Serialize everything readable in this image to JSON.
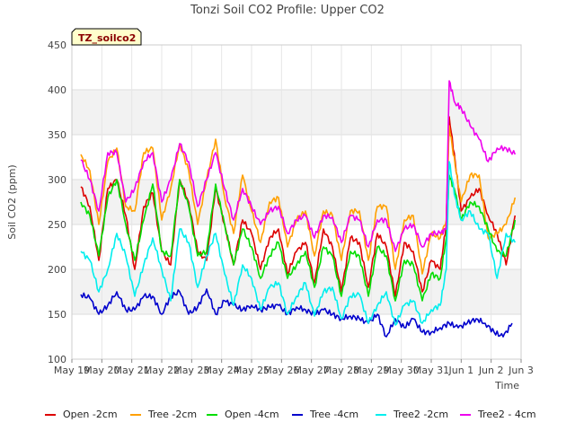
{
  "chart_data": {
    "type": "line",
    "title": "Tonzi Soil CO2 Profile: Upper CO2",
    "xlabel": "Time",
    "ylabel": "Soil CO2 (ppm)",
    "badge": "TZ_soilco2",
    "ylim": [
      100,
      450
    ],
    "yticks": [
      100,
      150,
      200,
      250,
      300,
      350,
      400,
      450
    ],
    "xlim": [
      0,
      15
    ],
    "xticks": [
      {
        "pos": 0,
        "label": "May 19"
      },
      {
        "pos": 1,
        "label": "May 20"
      },
      {
        "pos": 2,
        "label": "May 21"
      },
      {
        "pos": 3,
        "label": "May 22"
      },
      {
        "pos": 4,
        "label": "May 23"
      },
      {
        "pos": 5,
        "label": "May 24"
      },
      {
        "pos": 6,
        "label": "May 25"
      },
      {
        "pos": 7,
        "label": "May 26"
      },
      {
        "pos": 8,
        "label": "May 27"
      },
      {
        "pos": 9,
        "label": "May 28"
      },
      {
        "pos": 10,
        "label": "May 29"
      },
      {
        "pos": 11,
        "label": "May 30"
      },
      {
        "pos": 12,
        "label": "May 31"
      },
      {
        "pos": 13,
        "label": "Jun 1"
      },
      {
        "pos": 14,
        "label": "Jun 2"
      },
      {
        "pos": 15,
        "label": "Jun 3"
      }
    ],
    "grid": true,
    "legend_position": "bottom",
    "series": [
      {
        "name": "Open -2cm",
        "color": "#dd0000",
        "x": [
          0.3,
          0.6,
          0.9,
          1.2,
          1.5,
          1.8,
          2.1,
          2.4,
          2.7,
          3.0,
          3.3,
          3.6,
          3.9,
          4.2,
          4.5,
          4.8,
          5.1,
          5.4,
          5.7,
          6.0,
          6.3,
          6.6,
          6.9,
          7.2,
          7.5,
          7.8,
          8.1,
          8.4,
          8.7,
          9.0,
          9.3,
          9.6,
          9.9,
          10.2,
          10.5,
          10.8,
          11.1,
          11.4,
          11.7,
          12.0,
          12.3,
          12.5,
          12.6,
          12.8,
          13.0,
          13.3,
          13.6,
          13.9,
          14.2,
          14.5,
          14.8
        ],
        "y": [
          292,
          270,
          210,
          290,
          300,
          260,
          200,
          270,
          285,
          220,
          205,
          300,
          275,
          220,
          210,
          290,
          250,
          205,
          255,
          240,
          200,
          235,
          245,
          195,
          220,
          230,
          185,
          245,
          225,
          175,
          235,
          230,
          180,
          240,
          225,
          170,
          230,
          220,
          175,
          210,
          200,
          250,
          370,
          320,
          265,
          280,
          290,
          260,
          240,
          205,
          260
        ]
      },
      {
        "name": "Tree -2cm",
        "color": "#ffa000",
        "x": [
          0.3,
          0.6,
          0.9,
          1.2,
          1.5,
          1.8,
          2.1,
          2.4,
          2.7,
          3.0,
          3.3,
          3.6,
          3.9,
          4.2,
          4.5,
          4.8,
          5.1,
          5.4,
          5.7,
          6.0,
          6.3,
          6.6,
          6.9,
          7.2,
          7.5,
          7.8,
          8.1,
          8.4,
          8.7,
          9.0,
          9.3,
          9.6,
          9.9,
          10.2,
          10.5,
          10.8,
          11.1,
          11.4,
          11.7,
          12.0,
          12.3,
          12.5,
          12.6,
          12.8,
          13.0,
          13.3,
          13.6,
          13.9,
          14.2,
          14.5,
          14.8
        ],
        "y": [
          328,
          310,
          250,
          320,
          335,
          270,
          265,
          330,
          335,
          255,
          290,
          340,
          310,
          250,
          300,
          345,
          280,
          240,
          305,
          265,
          230,
          275,
          280,
          225,
          255,
          265,
          215,
          265,
          260,
          210,
          265,
          265,
          210,
          270,
          270,
          200,
          255,
          260,
          195,
          240,
          235,
          255,
          360,
          315,
          275,
          305,
          305,
          235,
          240,
          250,
          280
        ]
      },
      {
        "name": "Open -4cm",
        "color": "#00dd00",
        "x": [
          0.3,
          0.6,
          0.9,
          1.2,
          1.5,
          1.8,
          2.1,
          2.4,
          2.7,
          3.0,
          3.3,
          3.6,
          3.9,
          4.2,
          4.5,
          4.8,
          5.1,
          5.4,
          5.7,
          6.0,
          6.3,
          6.6,
          6.9,
          7.2,
          7.5,
          7.8,
          8.1,
          8.4,
          8.7,
          9.0,
          9.3,
          9.6,
          9.9,
          10.2,
          10.5,
          10.8,
          11.1,
          11.4,
          11.7,
          12.0,
          12.3,
          12.5,
          12.6,
          12.8,
          13.0,
          13.3,
          13.6,
          13.9,
          14.2,
          14.5,
          14.8
        ],
        "y": [
          275,
          260,
          215,
          280,
          300,
          250,
          210,
          255,
          295,
          220,
          215,
          300,
          270,
          215,
          220,
          295,
          250,
          205,
          245,
          225,
          190,
          215,
          230,
          190,
          205,
          220,
          180,
          225,
          215,
          170,
          220,
          215,
          170,
          225,
          215,
          165,
          210,
          205,
          165,
          195,
          190,
          235,
          305,
          285,
          255,
          275,
          270,
          245,
          220,
          215,
          255
        ]
      },
      {
        "name": "Tree -4cm",
        "color": "#0000cc",
        "x": [
          0.3,
          0.6,
          0.9,
          1.2,
          1.5,
          1.8,
          2.1,
          2.4,
          2.7,
          3.0,
          3.3,
          3.6,
          3.9,
          4.2,
          4.5,
          4.8,
          5.1,
          5.4,
          5.7,
          6.0,
          6.3,
          6.6,
          6.9,
          7.2,
          7.5,
          7.8,
          8.1,
          8.4,
          8.7,
          9.0,
          9.3,
          9.6,
          9.9,
          10.2,
          10.5,
          10.8,
          11.1,
          11.4,
          11.7,
          12.0,
          12.3,
          12.6,
          12.9,
          13.2,
          13.5,
          13.8,
          14.1,
          14.4,
          14.7
        ],
        "y": [
          172,
          168,
          150,
          160,
          175,
          155,
          155,
          170,
          170,
          150,
          170,
          175,
          150,
          158,
          178,
          150,
          165,
          160,
          155,
          160,
          155,
          158,
          160,
          150,
          158,
          155,
          150,
          155,
          150,
          145,
          148,
          145,
          140,
          150,
          125,
          145,
          135,
          145,
          130,
          130,
          135,
          140,
          135,
          140,
          145,
          140,
          130,
          125,
          140
        ]
      },
      {
        "name": "Tree2 -2cm",
        "color": "#00eeee",
        "x": [
          0.3,
          0.6,
          0.9,
          1.2,
          1.5,
          1.8,
          2.1,
          2.4,
          2.7,
          3.0,
          3.3,
          3.6,
          3.9,
          4.2,
          4.5,
          4.8,
          5.1,
          5.4,
          5.7,
          6.0,
          6.3,
          6.6,
          6.9,
          7.2,
          7.5,
          7.8,
          8.1,
          8.4,
          8.7,
          9.0,
          9.3,
          9.6,
          9.9,
          10.2,
          10.5,
          10.8,
          11.1,
          11.4,
          11.7,
          12.0,
          12.3,
          12.5,
          12.6,
          12.8,
          13.0,
          13.3,
          13.6,
          13.9,
          14.2,
          14.5,
          14.8
        ],
        "y": [
          220,
          210,
          175,
          200,
          240,
          215,
          170,
          205,
          235,
          200,
          165,
          245,
          230,
          180,
          215,
          240,
          195,
          160,
          205,
          190,
          155,
          180,
          185,
          150,
          170,
          185,
          148,
          175,
          180,
          145,
          170,
          172,
          140,
          160,
          175,
          138,
          160,
          165,
          140,
          155,
          160,
          200,
          320,
          280,
          255,
          265,
          245,
          240,
          190,
          240,
          230
        ]
      },
      {
        "name": "Tree2 - 4cm",
        "color": "#ee00ee",
        "x": [
          0.3,
          0.6,
          0.9,
          1.2,
          1.5,
          1.8,
          2.1,
          2.4,
          2.7,
          3.0,
          3.3,
          3.6,
          3.9,
          4.2,
          4.5,
          4.8,
          5.1,
          5.4,
          5.7,
          6.0,
          6.3,
          6.6,
          6.9,
          7.2,
          7.5,
          7.8,
          8.1,
          8.4,
          8.7,
          9.0,
          9.3,
          9.6,
          9.9,
          10.2,
          10.5,
          10.8,
          11.1,
          11.4,
          11.7,
          12.0,
          12.3,
          12.5,
          12.6,
          12.8,
          13.0,
          13.3,
          13.6,
          13.9,
          14.2,
          14.5,
          14.8
        ],
        "y": [
          322,
          300,
          265,
          330,
          330,
          275,
          290,
          320,
          330,
          275,
          300,
          340,
          320,
          270,
          300,
          330,
          290,
          255,
          290,
          270,
          250,
          265,
          270,
          240,
          255,
          260,
          235,
          260,
          258,
          230,
          260,
          255,
          225,
          255,
          255,
          220,
          245,
          250,
          225,
          240,
          240,
          245,
          410,
          385,
          380,
          360,
          345,
          320,
          335,
          335,
          328
        ]
      }
    ]
  }
}
